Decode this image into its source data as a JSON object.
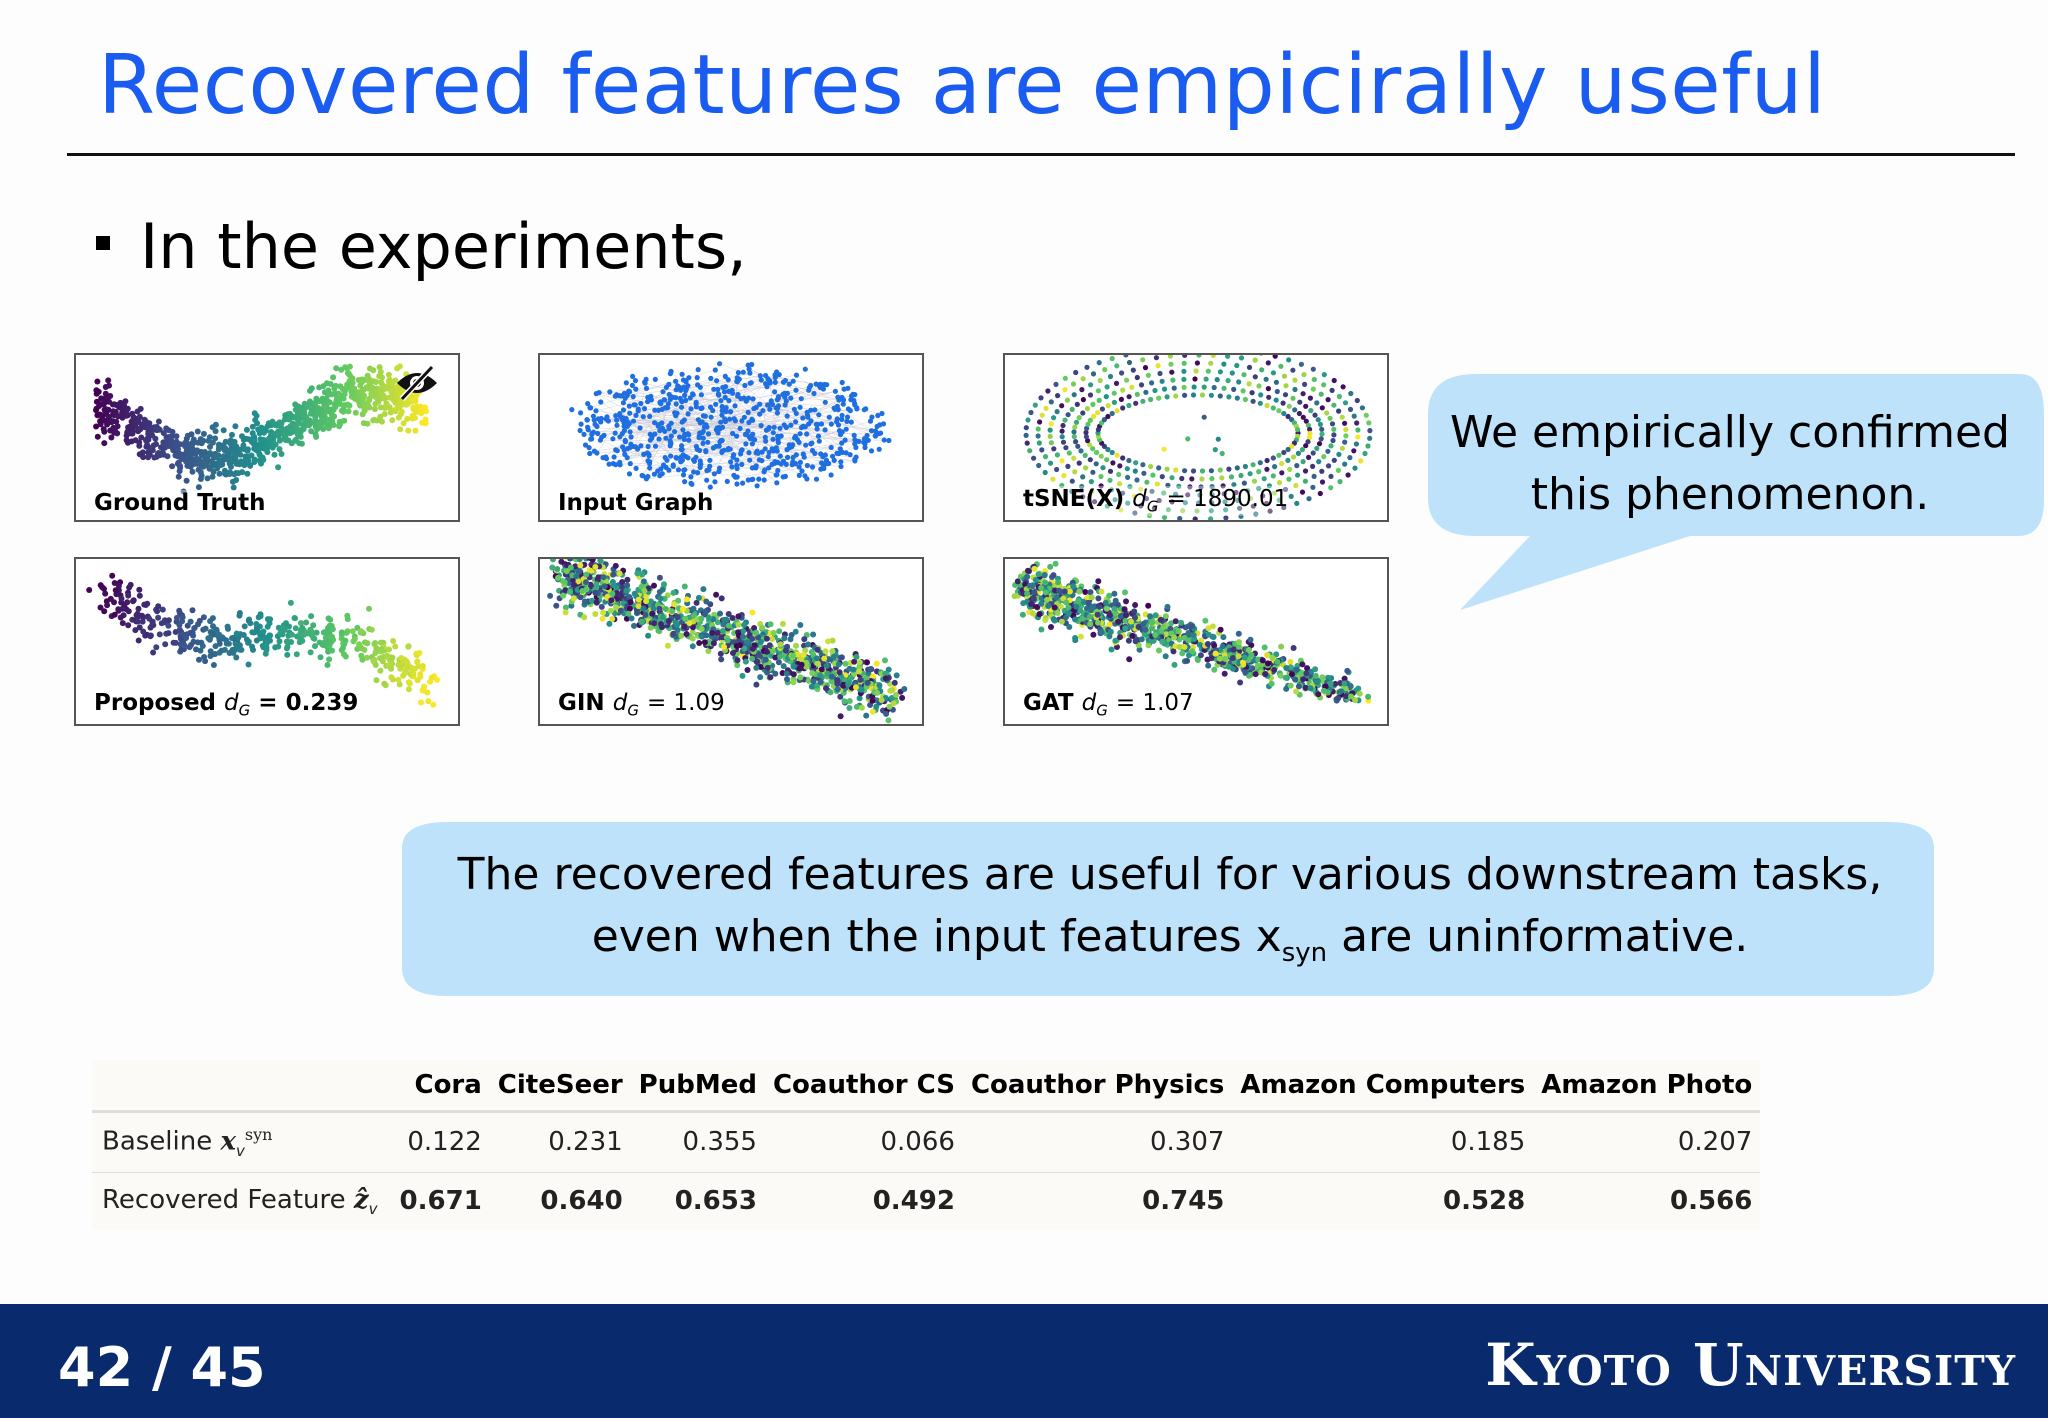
{
  "slide": {
    "title": "Recovered features are empicirally useful",
    "bullet": "In the experiments,"
  },
  "panels": [
    {
      "label": "Ground Truth",
      "metric": "",
      "value": "",
      "icon": "eye-off-icon"
    },
    {
      "label": "Input Graph",
      "metric": "",
      "value": ""
    },
    {
      "label": "tSNE(X)",
      "metric": "d",
      "value": "= 1890.01"
    },
    {
      "label": "Proposed",
      "metric": "d",
      "value": "= 0.239"
    },
    {
      "label": "GIN",
      "metric": "d",
      "value": "= 1.09"
    },
    {
      "label": "GAT",
      "metric": "d",
      "value": "= 1.07"
    }
  ],
  "metric_subscript": "G",
  "callouts": {
    "top_line1": "We empirically confirmed",
    "top_line2": "this phenomenon.",
    "bottom_line1": "The recovered features are useful for various downstream tasks,",
    "bottom_line2_pre": "even when the input features x",
    "bottom_line2_sub": "syn",
    "bottom_line2_post": " are uninformative."
  },
  "table": {
    "headers": [
      "Cora",
      "CiteSeer",
      "PubMed",
      "Coauthor CS",
      "Coauthor Physics",
      "Amazon Computers",
      "Amazon Photo"
    ],
    "rows": [
      {
        "label": "Baseline",
        "symbol": "x",
        "sup": "syn",
        "sub": "v",
        "values": [
          "0.122",
          "0.231",
          "0.355",
          "0.066",
          "0.307",
          "0.185",
          "0.207"
        ]
      },
      {
        "label": "Recovered Feature",
        "symbol": "ẑ",
        "sub": "v",
        "values": [
          "0.671",
          "0.640",
          "0.653",
          "0.492",
          "0.745",
          "0.528",
          "0.566"
        ]
      }
    ]
  },
  "footer": {
    "page": "42 / 45",
    "university": "Kyoto University"
  },
  "colors": {
    "title": "#1a5cf0",
    "callout": "#bfe2fb",
    "footer": "#0a2a6e",
    "scatter_blue": "#1f6fe0"
  }
}
